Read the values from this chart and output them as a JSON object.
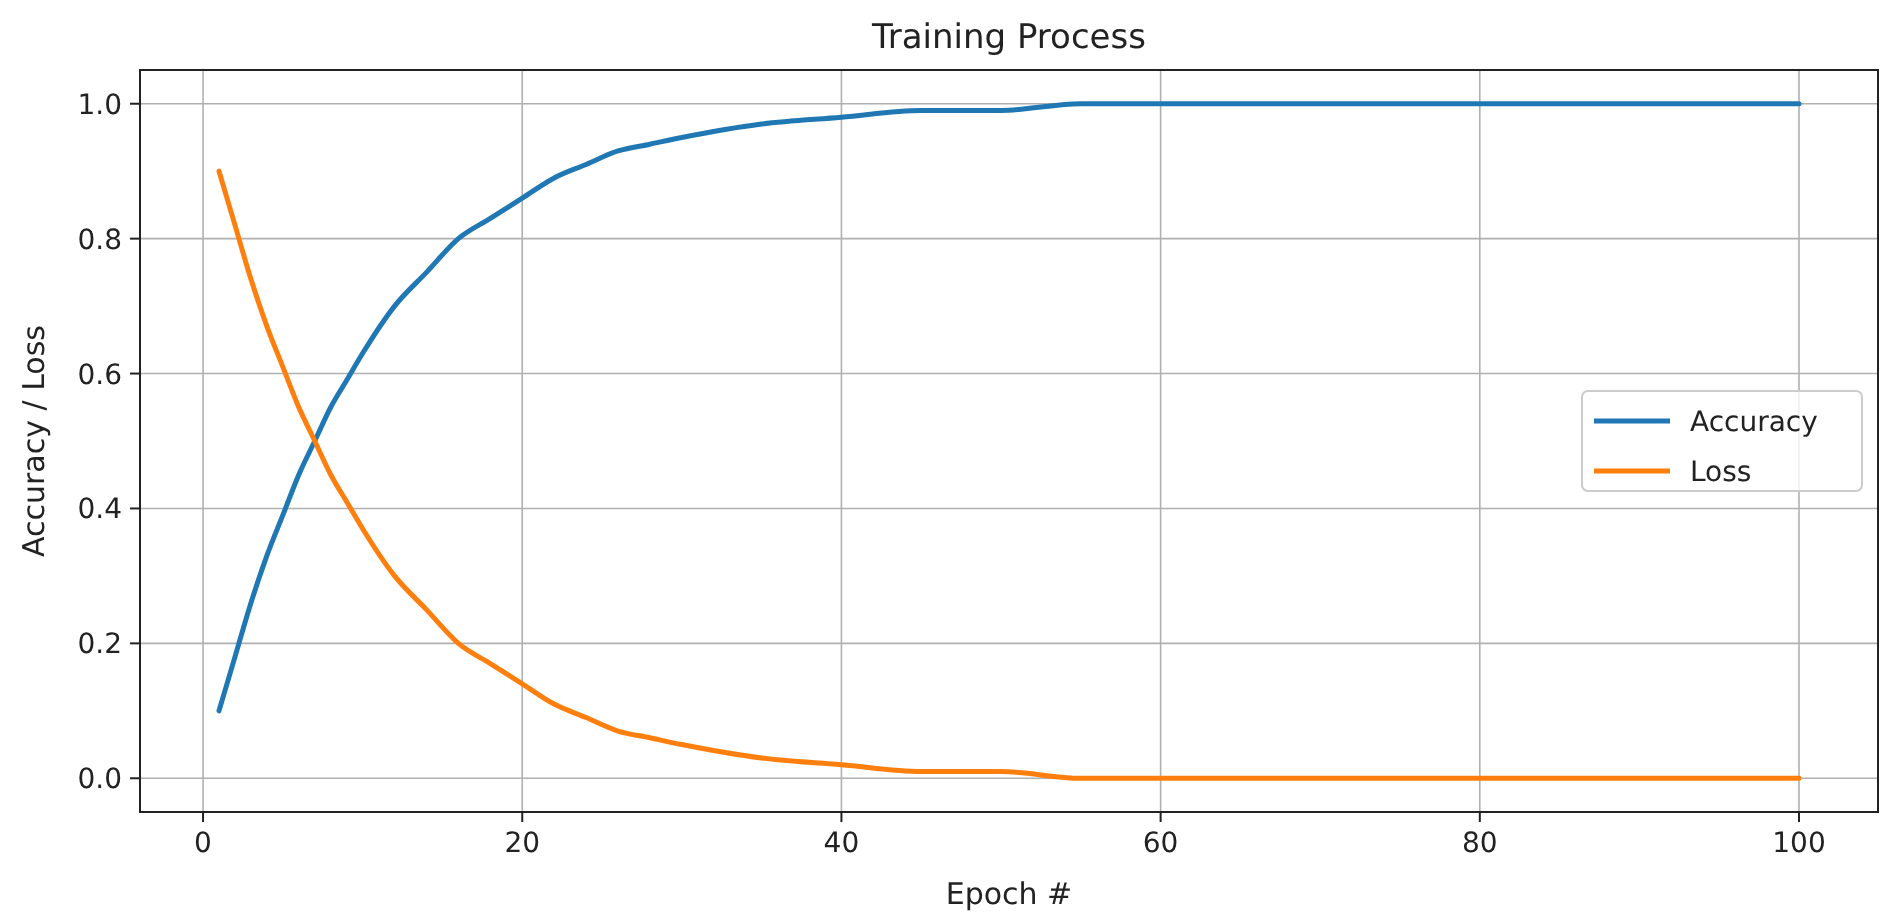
{
  "chart_data": {
    "type": "line",
    "title": "Training Process",
    "xlabel": "Epoch #",
    "ylabel": "Accuracy / Loss",
    "x": [
      1,
      2,
      3,
      4,
      5,
      6,
      7,
      8,
      9,
      10,
      12,
      14,
      16,
      18,
      20,
      22,
      24,
      26,
      28,
      30,
      35,
      40,
      45,
      50,
      55,
      60,
      70,
      80,
      90,
      100
    ],
    "series": [
      {
        "name": "Accuracy",
        "color": "#1f77b4",
        "values": [
          0.1,
          0.18,
          0.26,
          0.33,
          0.39,
          0.45,
          0.5,
          0.55,
          0.59,
          0.63,
          0.7,
          0.75,
          0.8,
          0.83,
          0.86,
          0.89,
          0.91,
          0.93,
          0.94,
          0.95,
          0.97,
          0.98,
          0.99,
          0.99,
          1.0,
          1.0,
          1.0,
          1.0,
          1.0,
          1.0
        ]
      },
      {
        "name": "Loss",
        "color": "#ff7f0e",
        "values": [
          0.9,
          0.82,
          0.74,
          0.67,
          0.61,
          0.55,
          0.5,
          0.45,
          0.41,
          0.37,
          0.3,
          0.25,
          0.2,
          0.17,
          0.14,
          0.11,
          0.09,
          0.07,
          0.06,
          0.05,
          0.03,
          0.02,
          0.01,
          0.01,
          0.0,
          0.0,
          0.0,
          0.0,
          0.0,
          0.0
        ]
      }
    ],
    "xlim": [
      -3.95,
      104.95
    ],
    "ylim": [
      -0.05,
      1.05
    ],
    "xticks": [
      0,
      20,
      40,
      60,
      80,
      100
    ],
    "yticks": [
      {
        "value": 0,
        "label": "0.0"
      },
      {
        "value": 0.2,
        "label": "0.2"
      },
      {
        "value": 0.4,
        "label": "0.4"
      },
      {
        "value": 0.6,
        "label": "0.6"
      },
      {
        "value": 0.8,
        "label": "0.8"
      },
      {
        "value": 1,
        "label": "1.0"
      }
    ],
    "grid": true,
    "legend": "right",
    "line_style": "solid",
    "marker": "none"
  }
}
